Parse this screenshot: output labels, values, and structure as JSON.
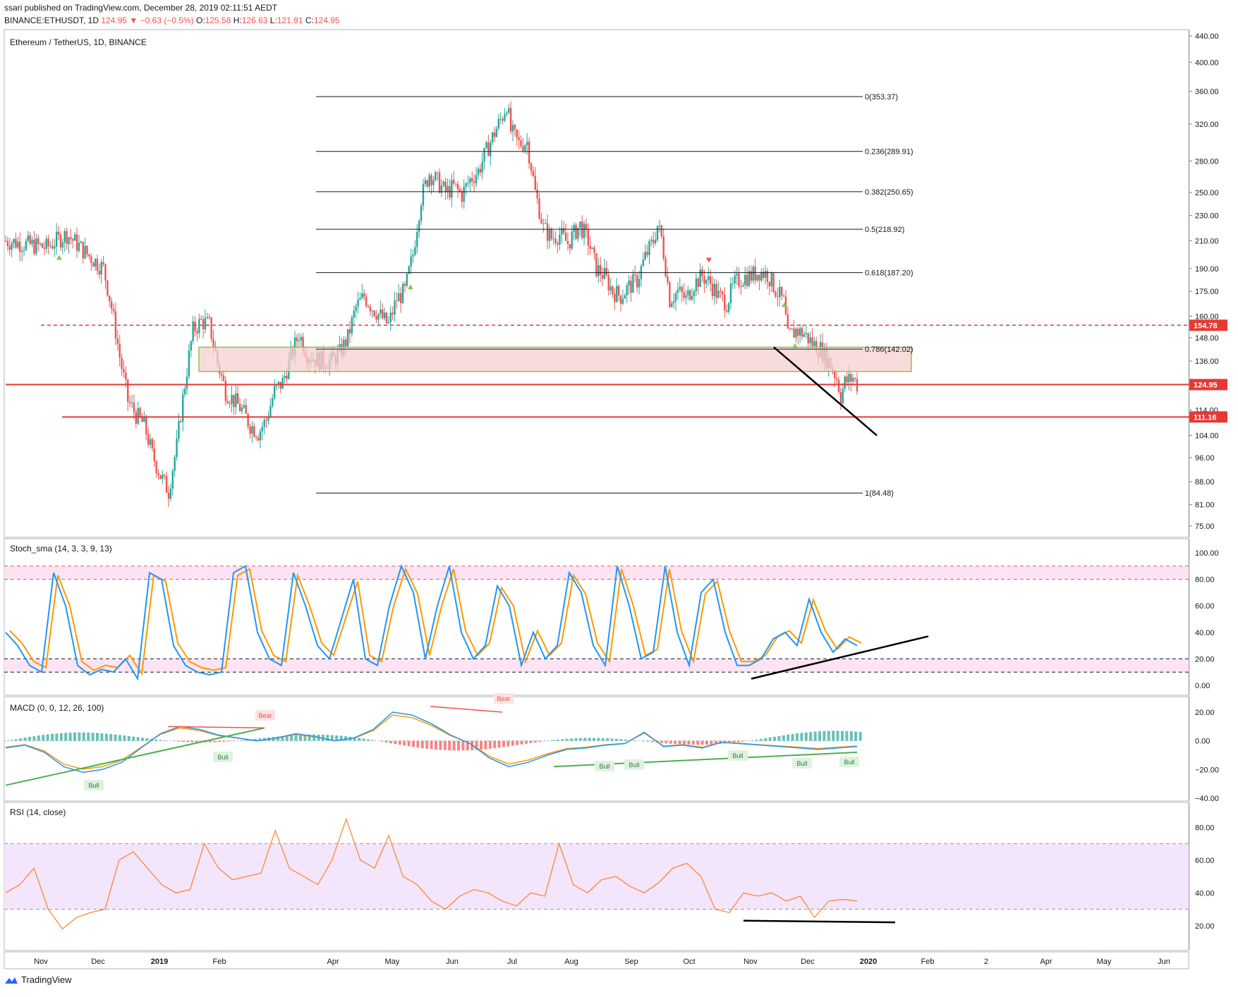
{
  "header": {
    "published_line": "ssari published on TradingView.com, December 28, 2019 02:11:51 AEDT",
    "symbol_line": "BINANCE:ETHUSDT, 1D",
    "change": "124.95 ▼ −0.63 (−0.5%)",
    "ohlc": {
      "O": "125.58",
      "H": "126.63",
      "L": "121.91",
      "C": "124.95"
    }
  },
  "colors": {
    "up": "#26a69a",
    "down": "#ef5350",
    "stoch_k": "#2196f3",
    "stoch_d": "#ff9800",
    "rsi": "#ff7f27",
    "band_stoch": "#fce4f4",
    "band_rsi": "#f3e5fb",
    "support_red": "#e53935",
    "zone_fill": "#f5d0d0",
    "zone_border": "#8bc34a",
    "trend_green": "#4caf50"
  },
  "chart_data": [
    {
      "type": "candlestick",
      "title": "Ethereum / TetherUS, 1D, BINANCE",
      "x_axis_ticks": [
        "Nov",
        "Dec",
        "2019",
        "Feb",
        "Apr",
        "May",
        "Jun",
        "Jul",
        "Aug",
        "Sep",
        "Oct",
        "Nov",
        "Dec",
        "2020",
        "Feb",
        "2",
        "Apr",
        "May",
        "Jun"
      ],
      "y_axis_scale": "log",
      "y_axis_ticks": [
        "440.00",
        "400.00",
        "360.00",
        "320.00",
        "280.00",
        "250.00",
        "230.00",
        "210.00",
        "190.00",
        "175.00",
        "160.00",
        "148.00",
        "136.00",
        "114.00",
        "104.00",
        "96.00",
        "88.00",
        "81.00",
        "75.00"
      ],
      "price_labels": [
        {
          "value": "154.78",
          "style": "dashed"
        },
        {
          "value": "124.95",
          "style": "current"
        },
        {
          "value": "111.16",
          "style": "solid"
        }
      ],
      "fibonacci": [
        {
          "level": "0(353.37)",
          "price": 353.37
        },
        {
          "level": "0.236(289.91)",
          "price": 289.91
        },
        {
          "level": "0.382(250.65)",
          "price": 250.65
        },
        {
          "level": "0.5(218.92)",
          "price": 218.92
        },
        {
          "level": "0.618(187.20)",
          "price": 187.2
        },
        {
          "level": "0.786(142.02)",
          "price": 142.02
        },
        {
          "level": "1(84.48)",
          "price": 84.48
        }
      ],
      "zone": {
        "from": 131,
        "to": 143
      },
      "path": [
        [
          0,
          210
        ],
        [
          20,
          205
        ],
        [
          30,
          215
        ],
        [
          40,
          200
        ],
        [
          48,
          190
        ],
        [
          52,
          165
        ],
        [
          56,
          138
        ],
        [
          60,
          118
        ],
        [
          64,
          112
        ],
        [
          68,
          108
        ],
        [
          72,
          97
        ],
        [
          76,
          90
        ],
        [
          80,
          85
        ],
        [
          84,
          100
        ],
        [
          88,
          125
        ],
        [
          92,
          152
        ],
        [
          96,
          157
        ],
        [
          100,
          155
        ],
        [
          104,
          135
        ],
        [
          108,
          122
        ],
        [
          112,
          118
        ],
        [
          116,
          114
        ],
        [
          120,
          108
        ],
        [
          124,
          105
        ],
        [
          128,
          110
        ],
        [
          132,
          122
        ],
        [
          136,
          126
        ],
        [
          140,
          138
        ],
        [
          144,
          150
        ],
        [
          148,
          140
        ],
        [
          152,
          137
        ],
        [
          156,
          136
        ],
        [
          160,
          136
        ],
        [
          164,
          140
        ],
        [
          168,
          148
        ],
        [
          172,
          165
        ],
        [
          176,
          172
        ],
        [
          180,
          165
        ],
        [
          184,
          160
        ],
        [
          188,
          155
        ],
        [
          192,
          170
        ],
        [
          196,
          175
        ],
        [
          200,
          200
        ],
        [
          204,
          245
        ],
        [
          208,
          268
        ],
        [
          212,
          260
        ],
        [
          216,
          250
        ],
        [
          220,
          255
        ],
        [
          224,
          248
        ],
        [
          228,
          262
        ],
        [
          232,
          270
        ],
        [
          236,
          290
        ],
        [
          240,
          310
        ],
        [
          244,
          330
        ],
        [
          246,
          345
        ],
        [
          248,
          312
        ],
        [
          252,
          298
        ],
        [
          256,
          300
        ],
        [
          258,
          275
        ],
        [
          260,
          250
        ],
        [
          264,
          220
        ],
        [
          268,
          212
        ],
        [
          272,
          215
        ],
        [
          276,
          208
        ],
        [
          280,
          218
        ],
        [
          282,
          222
        ],
        [
          286,
          210
        ],
        [
          290,
          190
        ],
        [
          294,
          185
        ],
        [
          298,
          175
        ],
        [
          302,
          172
        ],
        [
          306,
          178
        ],
        [
          310,
          182
        ],
        [
          314,
          198
        ],
        [
          318,
          210
        ],
        [
          320,
          222
        ],
        [
          322,
          212
        ],
        [
          326,
          170
        ],
        [
          330,
          175
        ],
        [
          334,
          170
        ],
        [
          338,
          180
        ],
        [
          342,
          185
        ],
        [
          346,
          180
        ],
        [
          350,
          172
        ],
        [
          354,
          168
        ],
        [
          358,
          180
        ],
        [
          362,
          184
        ],
        [
          366,
          185
        ],
        [
          370,
          188
        ],
        [
          374,
          186
        ],
        [
          378,
          176
        ],
        [
          382,
          168
        ],
        [
          384,
          148
        ],
        [
          388,
          152
        ],
        [
          392,
          150
        ],
        [
          396,
          145
        ],
        [
          400,
          142
        ],
        [
          404,
          136
        ],
        [
          408,
          128
        ],
        [
          410,
          120
        ],
        [
          412,
          126
        ],
        [
          416,
          128
        ],
        [
          418,
          124.95
        ]
      ]
    },
    {
      "type": "line",
      "title": "Stoch_sma (14, 3, 3, 9, 13)",
      "y_axis_ticks": [
        "100.00",
        "80.00",
        "60.00",
        "40.00",
        "20.00",
        "0.00"
      ],
      "bands": [
        80,
        90,
        10,
        20
      ],
      "series": [
        {
          "values": [
            40,
            30,
            15,
            10,
            85,
            60,
            15,
            8,
            12,
            10,
            20,
            5,
            85,
            80,
            30,
            15,
            10,
            8,
            10,
            85,
            90,
            40,
            20,
            15,
            85,
            60,
            30,
            20,
            50,
            80,
            20,
            15,
            60,
            90,
            70,
            20,
            60,
            90,
            40,
            20,
            30,
            75,
            60,
            15,
            40,
            20,
            30,
            85,
            70,
            30,
            15,
            90,
            60,
            20,
            25,
            90,
            40,
            15,
            70,
            80,
            40,
            15,
            15,
            20,
            35,
            40,
            30,
            65,
            40,
            25,
            35,
            30
          ]
        }
      ]
    },
    {
      "type": "line",
      "title": "MACD (0, 0, 12, 26, 100)",
      "y_axis_ticks": [
        "20.00",
        "0.00",
        "−20.00",
        "−40.00"
      ],
      "labels": [
        "Bear",
        "Bear",
        "Bull",
        "Bull",
        "Bull",
        "Bull",
        "Bull",
        "Bull",
        "Bull"
      ]
    },
    {
      "type": "line",
      "title": "RSI (14, close)",
      "y_axis_ticks": [
        "80.00",
        "60.00",
        "40.00",
        "20.00"
      ],
      "bands": [
        70,
        30
      ],
      "series": [
        {
          "values": [
            40,
            45,
            55,
            30,
            18,
            25,
            28,
            30,
            60,
            65,
            55,
            45,
            40,
            42,
            70,
            55,
            48,
            50,
            52,
            78,
            55,
            50,
            45,
            60,
            85,
            60,
            55,
            75,
            50,
            45,
            35,
            30,
            38,
            42,
            40,
            35,
            32,
            40,
            38,
            70,
            45,
            40,
            48,
            50,
            44,
            40,
            46,
            55,
            58,
            50,
            30,
            28,
            40,
            38,
            40,
            35,
            38,
            25,
            35,
            36,
            35
          ]
        }
      ]
    }
  ],
  "footer": {
    "brand": "TradingView"
  }
}
